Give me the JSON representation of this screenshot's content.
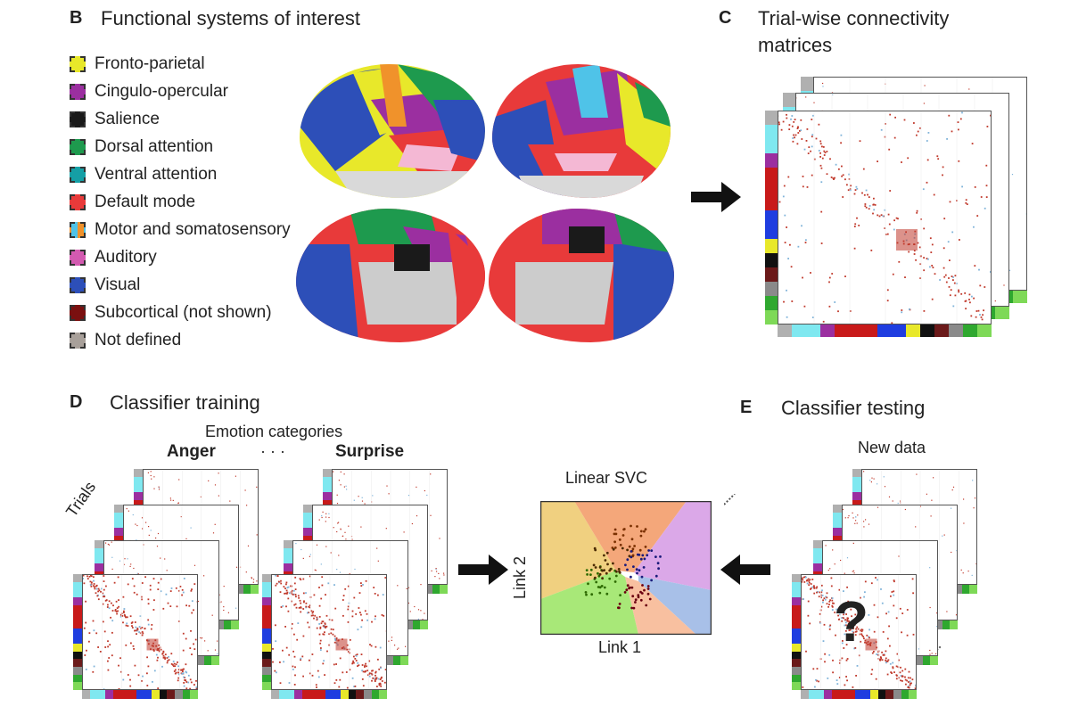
{
  "panelB": {
    "letter": "B",
    "title": "Functional systems of interest",
    "legend": [
      {
        "label": "Fronto-parietal",
        "color": "#e8e82a"
      },
      {
        "label": "Cingulo-opercular",
        "color": "#9b2fa0"
      },
      {
        "label": "Salience",
        "color": "#1a1a1a"
      },
      {
        "label": "Dorsal attention",
        "color": "#1e9a4e"
      },
      {
        "label": "Ventral attention",
        "color": "#159fa5"
      },
      {
        "label": "Default mode",
        "color": "#e83a3a"
      },
      {
        "label": "Motor and somatosensory",
        "color": "#4fc3e8",
        "color2": "#f0922b"
      },
      {
        "label": "Auditory",
        "color": "#d35ab0"
      },
      {
        "label": "Visual",
        "color": "#2d4fb8"
      },
      {
        "label": "Subcortical (not shown)",
        "color": "#7a1010"
      },
      {
        "label": "Not defined",
        "color": "#a8a09a"
      }
    ]
  },
  "panelC": {
    "letter": "C",
    "title_line1": "Trial-wise connectivity",
    "title_line2": "matrices"
  },
  "panelD": {
    "letter": "D",
    "title": "Classifier training",
    "emotion_categories": "Emotion categories",
    "category_first": "Anger",
    "ellipsis": "· · ·",
    "category_last": "Surprise",
    "trials_label": "Trials"
  },
  "svc": {
    "title": "Linear SVC",
    "xlabel": "Link 1",
    "ylabel": "Link 2"
  },
  "panelE": {
    "letter": "E",
    "title": "Classifier testing",
    "new_data": "New data",
    "question": "?"
  },
  "network_bar_colors": [
    "#b0b0b0",
    "#7fe8f0",
    "#7fe8f0",
    "#9b2fa0",
    "#c81a1a",
    "#c81a1a",
    "#c81a1a",
    "#1f3de0",
    "#1f3de0",
    "#e8e82a",
    "#111111",
    "#6b1a1a",
    "#8a8a8a",
    "#2fa82f",
    "#7ed957"
  ]
}
